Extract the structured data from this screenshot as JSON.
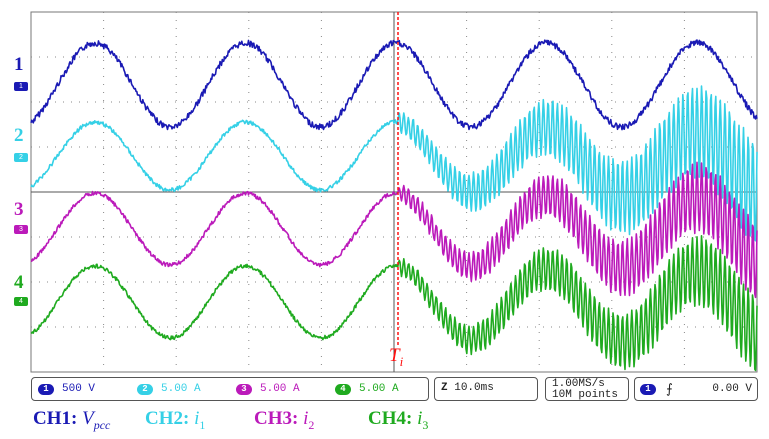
{
  "channels": [
    {
      "num": "1",
      "scale": "500 V",
      "color": "#1a1ab4",
      "label": "CH1:",
      "symbol": "V",
      "subscript": "pcc"
    },
    {
      "num": "2",
      "scale": "5.00 A",
      "color": "#35d0e6",
      "label": "CH2:",
      "symbol": "i",
      "subscript": "1"
    },
    {
      "num": "3",
      "scale": "5.00 A",
      "color": "#bb1aba",
      "label": "CH3:",
      "symbol": "i",
      "subscript": "2"
    },
    {
      "num": "4",
      "scale": "5.00 A",
      "color": "#1faa1f",
      "label": "CH4:",
      "symbol": "i",
      "subscript": "3"
    }
  ],
  "timebase": "10.0ms",
  "timebase_icon": "zoom-z-icon",
  "sample_rate": "1.00MS/s",
  "record_length": "10M points",
  "trigger": {
    "channel": "1",
    "slope_icon": "rising-edge-icon",
    "level": "0.00 V"
  },
  "event_marker": {
    "label": "T",
    "subscript": "i",
    "color": "#ff1010"
  },
  "grid": true
}
